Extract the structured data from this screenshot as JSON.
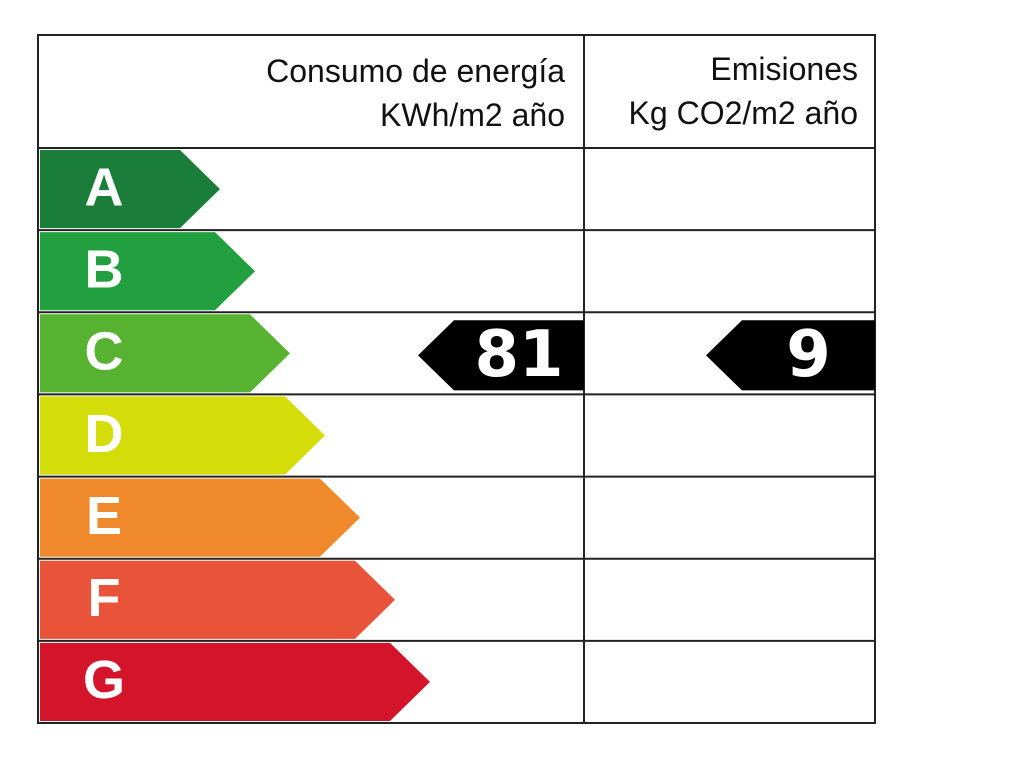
{
  "header": {
    "consumption": {
      "title": "Consumo de energía",
      "unit": "KWh/m2 año"
    },
    "emissions": {
      "title": "Emisiones",
      "unit": "Kg CO2/m2 año"
    }
  },
  "ratings": [
    {
      "label": "A",
      "color": "#1b7d3a"
    },
    {
      "label": "B",
      "color": "#22a040"
    },
    {
      "label": "C",
      "color": "#58b232"
    },
    {
      "label": "D",
      "color": "#d4dd0a"
    },
    {
      "label": "E",
      "color": "#f0892c"
    },
    {
      "label": "F",
      "color": "#e8533a"
    },
    {
      "label": "G",
      "color": "#d4142a"
    }
  ],
  "consumption": {
    "rating": "C",
    "value": 81
  },
  "emissions": {
    "rating": "C",
    "value": 9
  }
}
